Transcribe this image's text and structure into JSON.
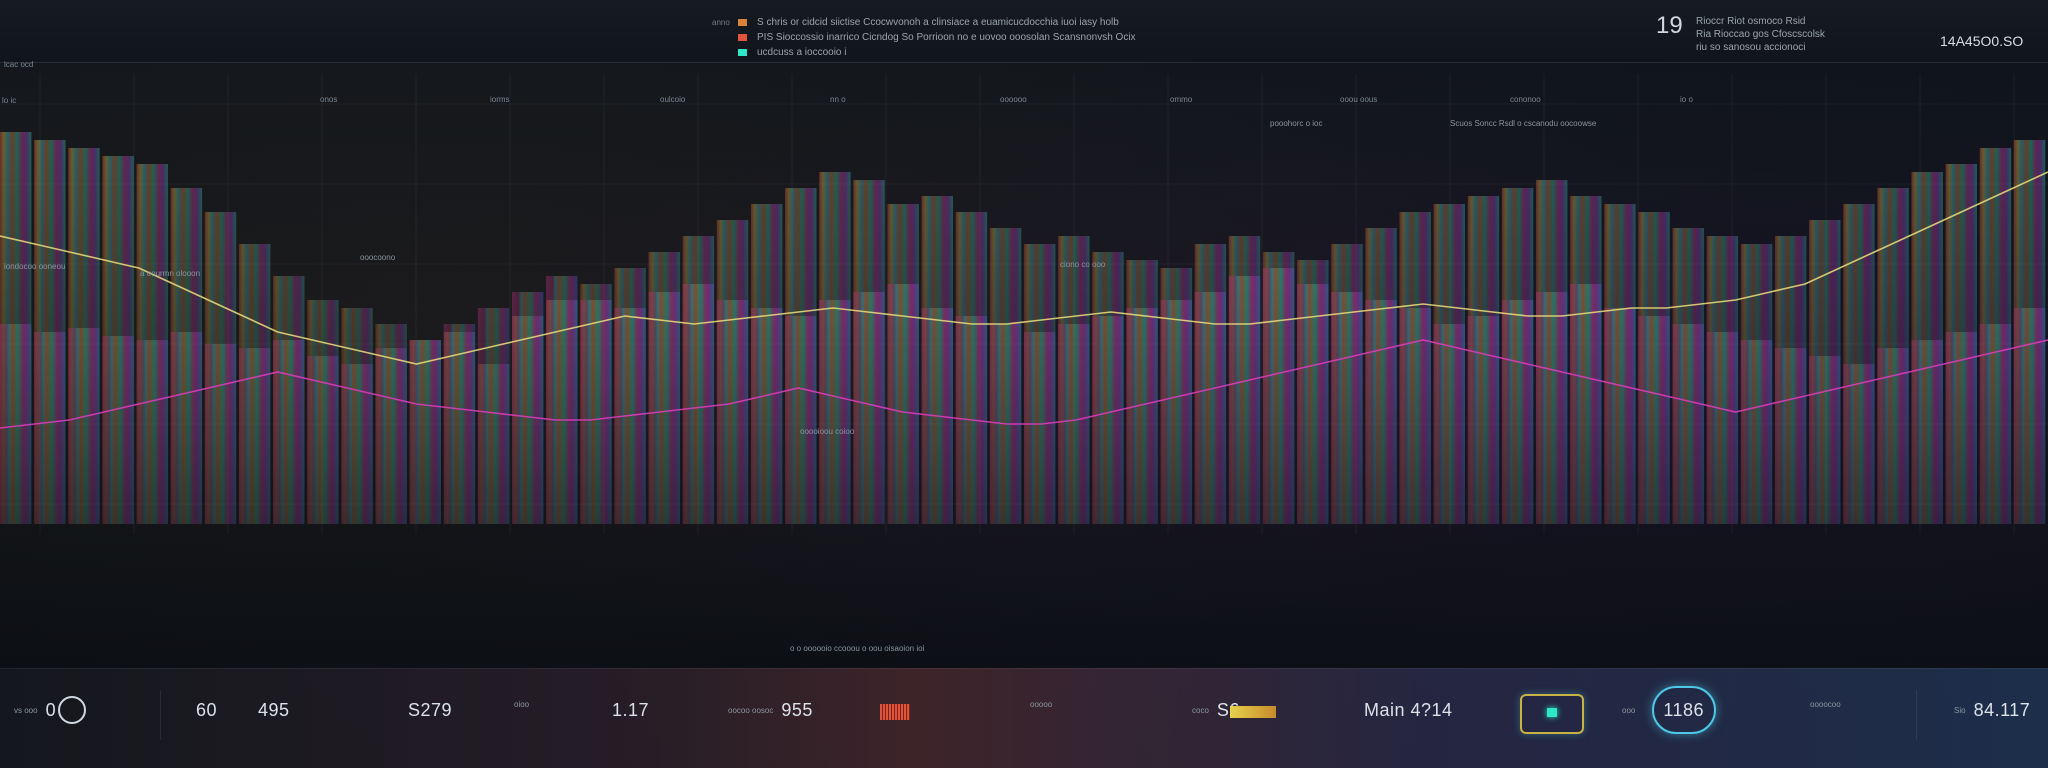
{
  "header": {
    "legend": [
      {
        "tag": "anno",
        "text": "S chris or cidcid siictise Ccocwvonoh a clinsiace a euamicucdocchia iuoi iasy holb",
        "color": "#d9823a"
      },
      {
        "tag": "",
        "text": "PIS Sioccossio inarrico Cicndog So Porrioon no e uovoo ooosolan Scansnonvsh Ocix",
        "color": "#e0533c"
      },
      {
        "tag": "",
        "text": "ucdcuss a ioccooio i",
        "color": "#2ee6c8"
      }
    ],
    "count": "19",
    "note_lines": [
      "Rioccr Riot osmoco Rsid",
      "Ria Rioccao gos Cfoscscolsk",
      "riu so sanosou accionoci"
    ],
    "value": "14A45O0.SO"
  },
  "labels": {
    "corner_top": "lcac ocd",
    "corner_side": "lo ic"
  },
  "chart": {
    "colors": {
      "orange": "#e07a3a",
      "yellow": "#e6c44a",
      "cyan": "#3cc8d8",
      "teal": "#2ecfa8",
      "magenta": "#d83c9a",
      "violet": "#9a4cd8",
      "blue": "#3c7ae6"
    },
    "x_ticks": [
      "onos",
      "iorms",
      "oulcoio",
      "nn o",
      "oooooo",
      "ommo",
      "ooou oous",
      "cononoo",
      "io o"
    ],
    "notes": [
      "iondocoo ooneou",
      "a oourmn olooon",
      "ooocoono",
      "Scuos Soncc Rsdl o cscanodu oocoowse",
      "pooohorc o ioc",
      "ciono co ooo",
      "ooooioou coioo"
    ]
  },
  "chart_data": {
    "type": "bar",
    "title": "",
    "xlabel": "",
    "ylabel": "",
    "ylim": [
      0,
      100
    ],
    "grid": true,
    "series": [
      {
        "name": "",
        "values": [
          88,
          86,
          84,
          82,
          80,
          74,
          68,
          60,
          52,
          46,
          44,
          40,
          36,
          38,
          30,
          42,
          46,
          50,
          54,
          58,
          62,
          66,
          70,
          74,
          78,
          76,
          70,
          72,
          68,
          64,
          60,
          62,
          58,
          56,
          54,
          60,
          62,
          58,
          56,
          60,
          64,
          68,
          70,
          72,
          74,
          76,
          72,
          70,
          68,
          64,
          62,
          60,
          62,
          66,
          70,
          74,
          78,
          80,
          84,
          86
        ]
      },
      {
        "name": "",
        "values": [
          40,
          38,
          39,
          37,
          36,
          38,
          35,
          34,
          36,
          32,
          30,
          34,
          36,
          40,
          44,
          48,
          52,
          46,
          44,
          48,
          50,
          46,
          44,
          42,
          46,
          48,
          50,
          44,
          42,
          40,
          38,
          40,
          42,
          44,
          46,
          48,
          52,
          54,
          50,
          48,
          46,
          44,
          40,
          42,
          46,
          48,
          50,
          44,
          42,
          40,
          38,
          36,
          34,
          32,
          30,
          34,
          36,
          38,
          40,
          44
        ]
      }
    ],
    "lines": [
      {
        "name": "",
        "values": [
          62,
          60,
          58,
          56,
          54,
          50,
          46,
          42,
          38,
          36,
          34,
          32,
          30,
          32,
          34,
          36,
          38,
          40,
          42,
          41,
          40,
          41,
          42,
          43,
          44,
          43,
          42,
          41,
          40,
          40,
          41,
          42,
          43,
          42,
          41,
          40,
          40,
          41,
          42,
          43,
          44,
          45,
          44,
          43,
          42,
          42,
          43,
          44,
          44,
          45,
          46,
          48,
          50,
          54,
          58,
          62,
          66,
          70,
          74,
          78
        ]
      },
      {
        "name": "",
        "values": [
          14,
          15,
          16,
          18,
          20,
          22,
          24,
          26,
          28,
          26,
          24,
          22,
          20,
          19,
          18,
          17,
          16,
          16,
          17,
          18,
          19,
          20,
          22,
          24,
          22,
          20,
          18,
          17,
          16,
          15,
          15,
          16,
          18,
          20,
          22,
          24,
          26,
          28,
          30,
          32,
          34,
          36,
          34,
          32,
          30,
          28,
          26,
          24,
          22,
          20,
          18,
          20,
          22,
          24,
          26,
          28,
          30,
          32,
          34,
          36
        ]
      }
    ]
  },
  "footer": {
    "caption": "o o oooooio ccooou o oou oisaoion ioi",
    "stats": [
      {
        "label": "vs ooo",
        "value": "0"
      },
      {
        "label": "",
        "value": "60"
      },
      {
        "label": "",
        "value": "495"
      },
      {
        "label": "",
        "value": "S279"
      },
      {
        "label": "oioo",
        "value": ""
      },
      {
        "label": "",
        "value": "1.17"
      },
      {
        "label": "oocoo oosoc",
        "value": "955"
      },
      {
        "label": "ooooo",
        "value": ""
      },
      {
        "label": "coco",
        "value": "S6"
      },
      {
        "label": "",
        "value": "Main 4?14"
      },
      {
        "label": "ooo",
        "value": "1186"
      },
      {
        "label": "oooocoo",
        "value": ""
      },
      {
        "label": "Sio",
        "value": "84.117"
      }
    ]
  }
}
